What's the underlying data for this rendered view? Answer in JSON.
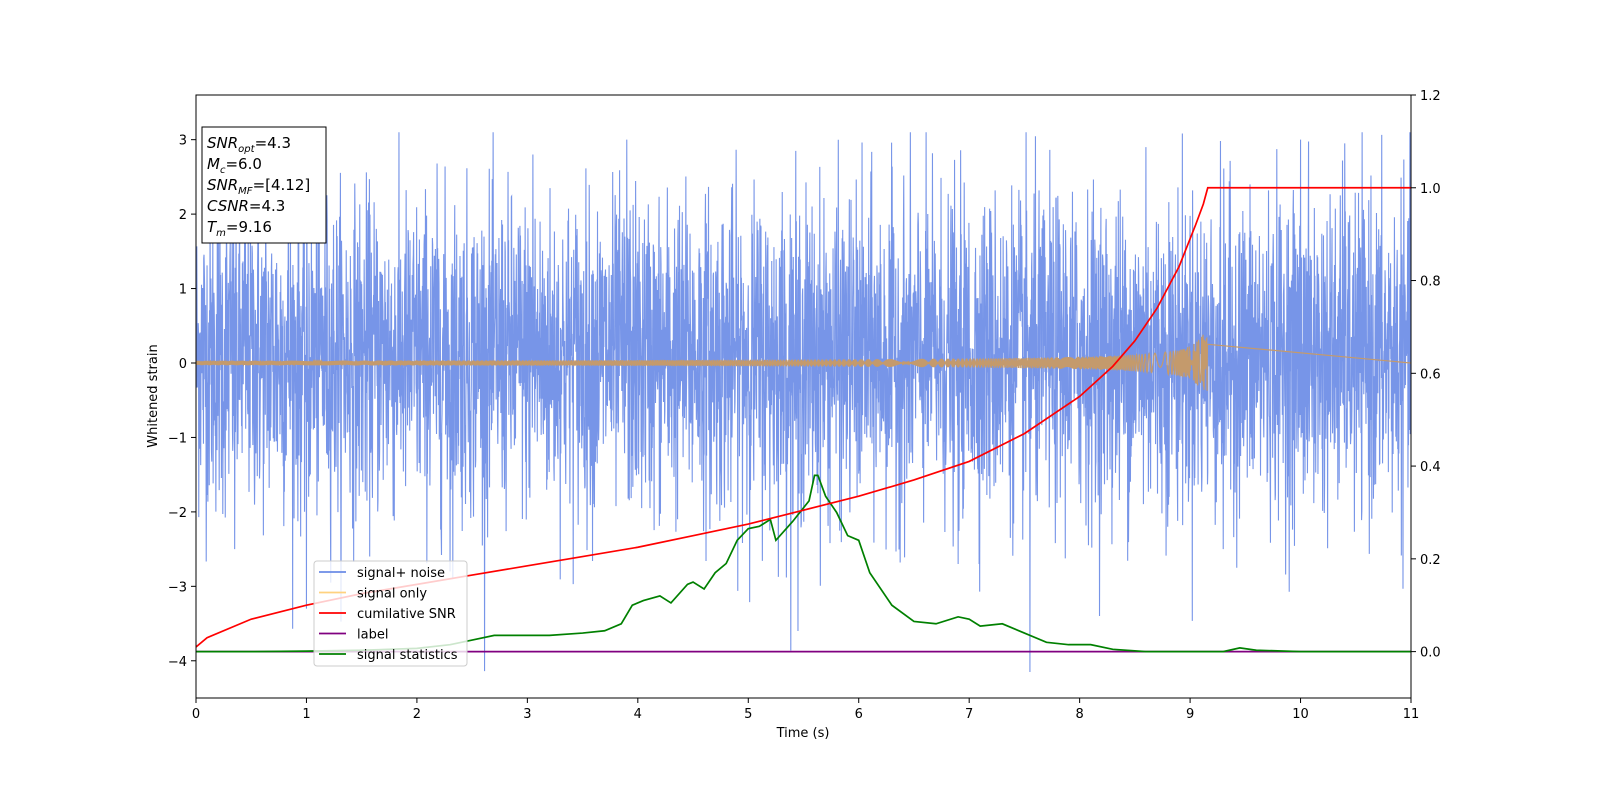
{
  "chart_data": {
    "type": "line",
    "xlabel": "Time (s)",
    "ylabel": "Whitened strain",
    "xlim": [
      0,
      11
    ],
    "ylim": [
      -4.5,
      3.6
    ],
    "y2lim": [
      -0.1,
      1.2
    ],
    "x_ticks": [
      "0",
      "1",
      "2",
      "3",
      "4",
      "5",
      "6",
      "7",
      "8",
      "9",
      "10",
      "11"
    ],
    "y_ticks": [
      "−4",
      "−3",
      "−2",
      "−1",
      "0",
      "1",
      "2",
      "3"
    ],
    "y2_ticks": [
      "0.0",
      "0.2",
      "0.4",
      "0.6",
      "0.8",
      "1.0",
      "1.2"
    ],
    "grid": false,
    "legend_position": "lower-left",
    "info_box": {
      "position": "upper-left",
      "lines": [
        {
          "main": "SNR",
          "sub": "opt",
          "value": "=4.3"
        },
        {
          "main": "M",
          "sub": "c",
          "value": "=6.0"
        },
        {
          "main": "SNR",
          "sub": "MF",
          "value": "=[4.12]"
        },
        {
          "main": "CSNR",
          "sub": "",
          "value": "=4.3"
        },
        {
          "main": "T",
          "sub": "m",
          "value": "=9.16"
        }
      ]
    },
    "series": [
      {
        "name": "signal+ noise",
        "color": "#6b8ce6",
        "axis": "left",
        "description_kind": "noise",
        "envelope": {
          "typical_min": -1.6,
          "typical_max": 1.8
        },
        "spikes": [
          {
            "x": 1.0,
            "y": -3.3
          },
          {
            "x": 3.9,
            "y": 3.0
          },
          {
            "x": 5.45,
            "y": -3.6
          },
          {
            "x": 7.55,
            "y": -4.15
          },
          {
            "x": 10.0,
            "y": 3.0
          },
          {
            "x": 10.4,
            "y": 2.95
          },
          {
            "x": 8.6,
            "y": 2.9
          },
          {
            "x": 3.05,
            "y": 2.8
          },
          {
            "x": 0.35,
            "y": -2.5
          },
          {
            "x": 6.9,
            "y": -2.7
          },
          {
            "x": 9.3,
            "y": -2.5
          },
          {
            "x": 2.3,
            "y": -2.8
          }
        ]
      },
      {
        "name": "signal only",
        "color": "#c49a6c",
        "axis": "left",
        "chirp": {
          "t_merge": 9.16,
          "amp_start": 0.03,
          "amp_end": 0.38
        }
      },
      {
        "name": "cumilative SNR",
        "color": "#ff0000",
        "axis": "right",
        "x": [
          0,
          0.1,
          0.5,
          1,
          1.5,
          2,
          2.5,
          3,
          3.5,
          4,
          4.5,
          5,
          5.5,
          6,
          6.5,
          7,
          7.5,
          8,
          8.3,
          8.5,
          8.7,
          8.9,
          9.05,
          9.12,
          9.16,
          11
        ],
        "y": [
          0.01,
          0.03,
          0.07,
          0.1,
          0.125,
          0.145,
          0.165,
          0.185,
          0.205,
          0.225,
          0.25,
          0.275,
          0.305,
          0.335,
          0.37,
          0.41,
          0.47,
          0.55,
          0.615,
          0.67,
          0.74,
          0.83,
          0.92,
          0.965,
          1.0,
          1.0
        ]
      },
      {
        "name": "label",
        "color": "#800080",
        "axis": "right",
        "x": [
          0,
          11
        ],
        "y": [
          0,
          0
        ]
      },
      {
        "name": "signal statistics",
        "color": "#008000",
        "axis": "right",
        "x": [
          0,
          0.5,
          1,
          1.5,
          2,
          2.3,
          2.5,
          2.7,
          2.8,
          3,
          3.2,
          3.5,
          3.7,
          3.85,
          3.95,
          4.05,
          4.2,
          4.3,
          4.45,
          4.5,
          4.6,
          4.7,
          4.8,
          4.9,
          5,
          5.1,
          5.2,
          5.25,
          5.4,
          5.55,
          5.6,
          5.63,
          5.7,
          5.8,
          5.9,
          6.0,
          6.1,
          6.3,
          6.5,
          6.7,
          6.9,
          7.0,
          7.1,
          7.3,
          7.5,
          7.7,
          7.9,
          8.1,
          8.3,
          8.6,
          9.0,
          9.3,
          9.45,
          9.6,
          10,
          10.5,
          11
        ],
        "y": [
          0.0,
          0.0,
          0.001,
          0.003,
          0.007,
          0.015,
          0.025,
          0.035,
          0.035,
          0.035,
          0.035,
          0.04,
          0.045,
          0.06,
          0.1,
          0.11,
          0.12,
          0.105,
          0.145,
          0.15,
          0.135,
          0.17,
          0.19,
          0.24,
          0.265,
          0.27,
          0.285,
          0.24,
          0.28,
          0.325,
          0.38,
          0.38,
          0.335,
          0.3,
          0.25,
          0.24,
          0.17,
          0.1,
          0.065,
          0.06,
          0.075,
          0.07,
          0.055,
          0.06,
          0.04,
          0.02,
          0.015,
          0.015,
          0.005,
          0.0,
          0.0,
          0.0,
          0.008,
          0.003,
          0.0,
          0.0,
          0.0
        ]
      }
    ]
  }
}
